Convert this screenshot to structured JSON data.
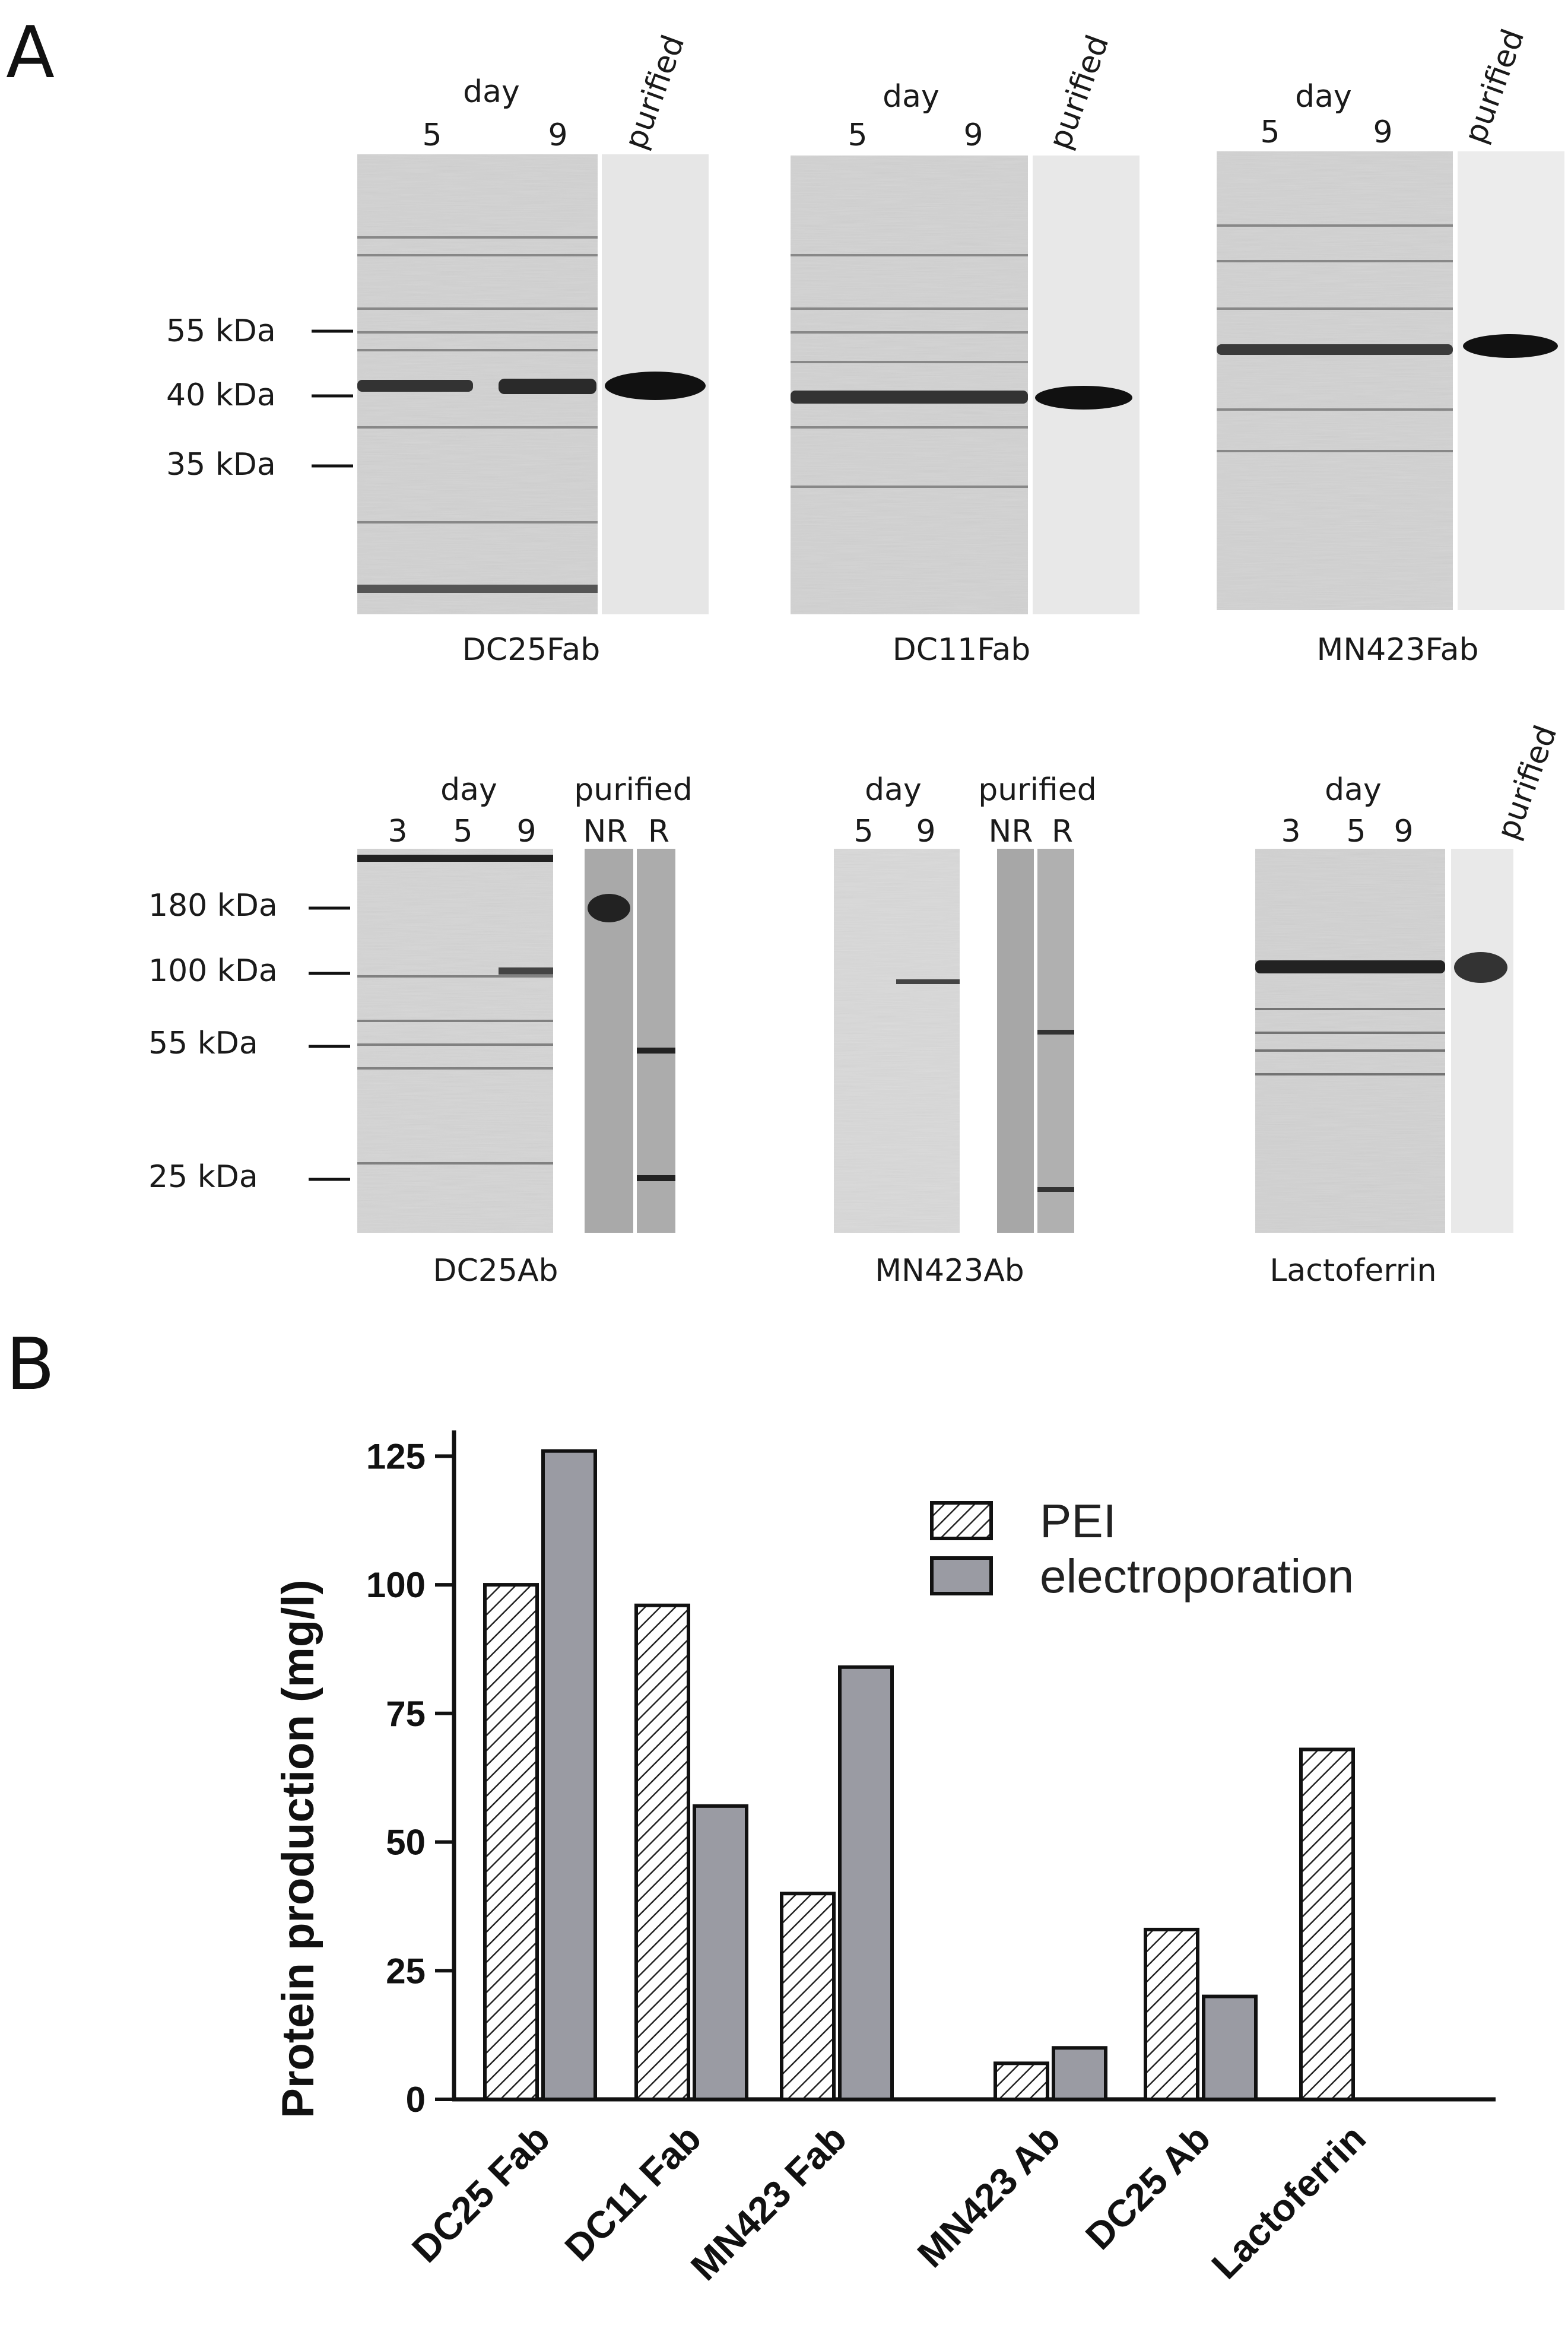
{
  "panels": {
    "a": "A",
    "b": "B"
  },
  "top_gels": [
    {
      "name": "DC25Fab",
      "day_label": "day",
      "lanes": [
        "5",
        "9"
      ],
      "purified_label": "purified"
    },
    {
      "name": "DC11Fab",
      "day_label": "day",
      "lanes": [
        "5",
        "9"
      ],
      "purified_label": "purified"
    },
    {
      "name": "MN423Fab",
      "day_label": "day",
      "lanes": [
        "5",
        "9"
      ],
      "purified_label": "purified"
    }
  ],
  "top_markers": [
    "55 kDa",
    "40 kDa",
    "35 kDa"
  ],
  "bottom_gels": [
    {
      "name": "DC25Ab",
      "day_label": "day",
      "lanes": [
        "3",
        "5",
        "9"
      ],
      "purified_label": "purified",
      "purified_lanes": [
        "NR",
        "R"
      ]
    },
    {
      "name": "MN423Ab",
      "day_label": "day",
      "lanes": [
        "5",
        "9"
      ],
      "purified_label": "purified",
      "purified_lanes": [
        "NR",
        "R"
      ]
    },
    {
      "name": "Lactoferrin",
      "day_label": "day",
      "lanes": [
        "3",
        "5",
        "9"
      ],
      "purified_label": "purified"
    }
  ],
  "bottom_markers": [
    "180 kDa",
    "100 kDa",
    "55 kDa",
    "25 kDa"
  ],
  "colors": {
    "pei_fill": "#ffffff",
    "pei_hatch": "#222222",
    "electroporation_fill": "#9a9ba3",
    "gel_bg": "#dcdcdc",
    "band": "#1a1a1a"
  },
  "chart_data": {
    "type": "bar",
    "categories": [
      "DC25 Fab",
      "DC11 Fab",
      "MN423 Fab",
      "MN423 Ab",
      "DC25 Ab",
      "Lactoferrin"
    ],
    "series": [
      {
        "name": "PEI",
        "values": [
          100,
          96,
          40,
          7,
          33,
          68
        ]
      },
      {
        "name": "electroporation",
        "values": [
          126,
          57,
          84,
          10,
          20,
          null
        ]
      }
    ],
    "ylabel": "Protein production (mg/l)",
    "yticks": [
      0,
      25,
      50,
      75,
      100,
      125
    ],
    "ylim": [
      0,
      130
    ],
    "legend_position": "top-right",
    "grid": false
  }
}
